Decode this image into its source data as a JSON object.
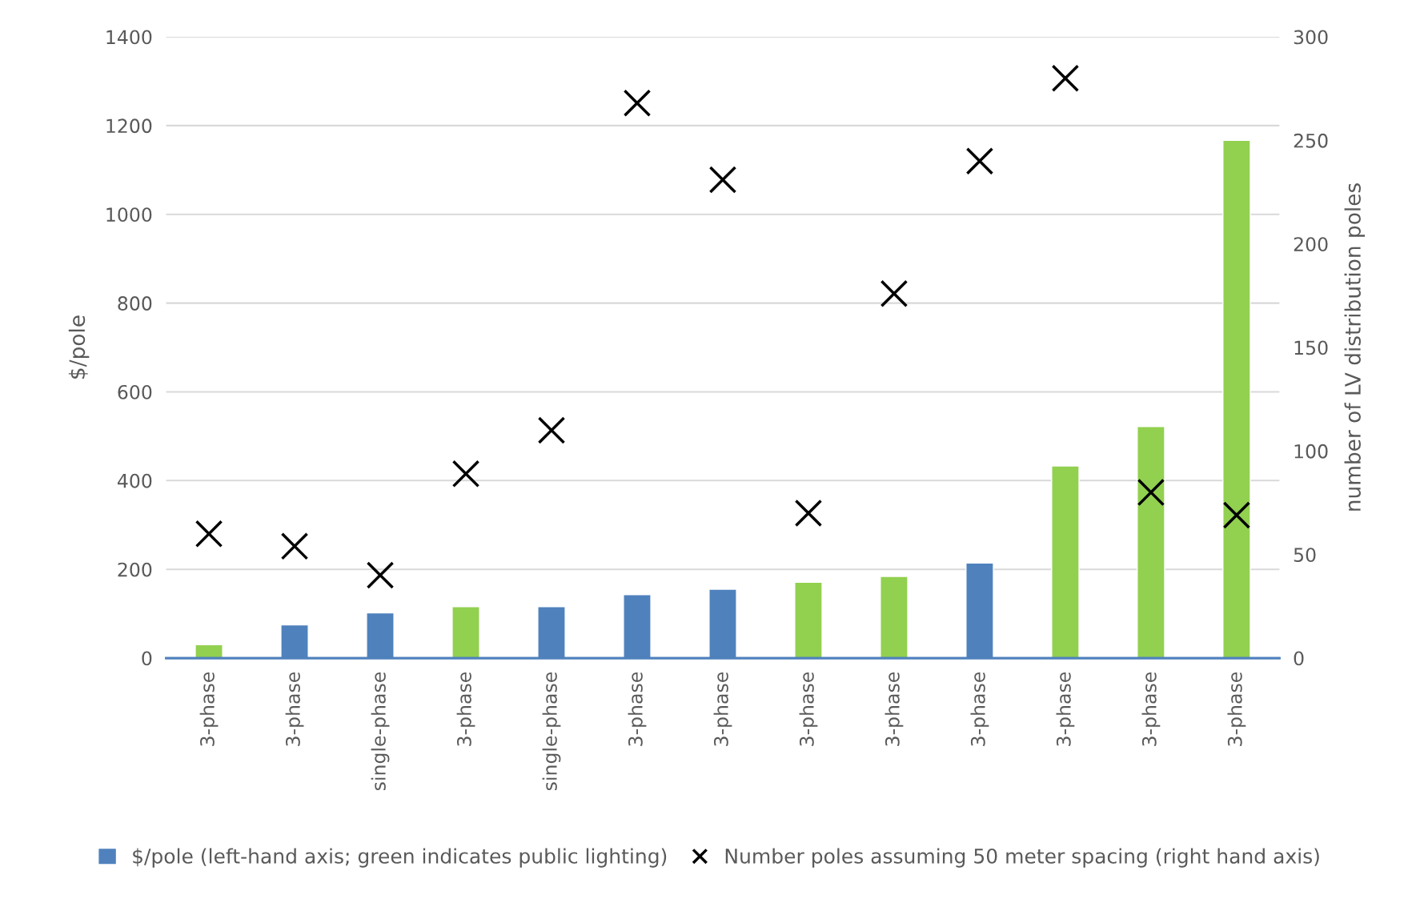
{
  "chart_data": {
    "type": "bar",
    "ylabel": "$/pole",
    "y2label": "number of LV distribution poles",
    "categories": [
      "3-phase",
      "3-phase",
      "single-phase",
      "3-phase",
      "single-phase",
      "3-phase",
      "3-phase",
      "3-phase",
      "3-phase",
      "3-phase",
      "3-phase",
      "3-phase",
      "3-phase"
    ],
    "series": [
      {
        "name": "$/pole (left-hand axis; green indicates public lighting)",
        "color": "#4f81bd",
        "colors": [
          "#92d050",
          "#4f81bd",
          "#4f81bd",
          "#92d050",
          "#4f81bd",
          "#4f81bd",
          "#4f81bd",
          "#92d050",
          "#92d050",
          "#4f81bd",
          "#92d050",
          "#92d050",
          "#92d050"
        ],
        "values": [
          30,
          75,
          102,
          116,
          116,
          143,
          155,
          171,
          184,
          214,
          433,
          522,
          1167
        ]
      },
      {
        "name": "Number poles assuming 50 meter spacing (right hand axis)",
        "type": "scatter",
        "axis": "y2",
        "color": "#000000",
        "marker": "cross",
        "values": [
          60,
          54,
          40,
          89,
          110,
          268,
          231,
          70,
          176,
          240,
          280,
          80,
          69
        ]
      }
    ],
    "ylim": [
      0,
      1400
    ],
    "yticks": [
      0,
      200,
      400,
      600,
      800,
      1000,
      1200,
      1400
    ],
    "y2lim": [
      0,
      300
    ],
    "y2ticks": [
      0,
      50,
      100,
      150,
      200,
      250,
      300
    ],
    "grid": "y",
    "legend": "bottom"
  }
}
